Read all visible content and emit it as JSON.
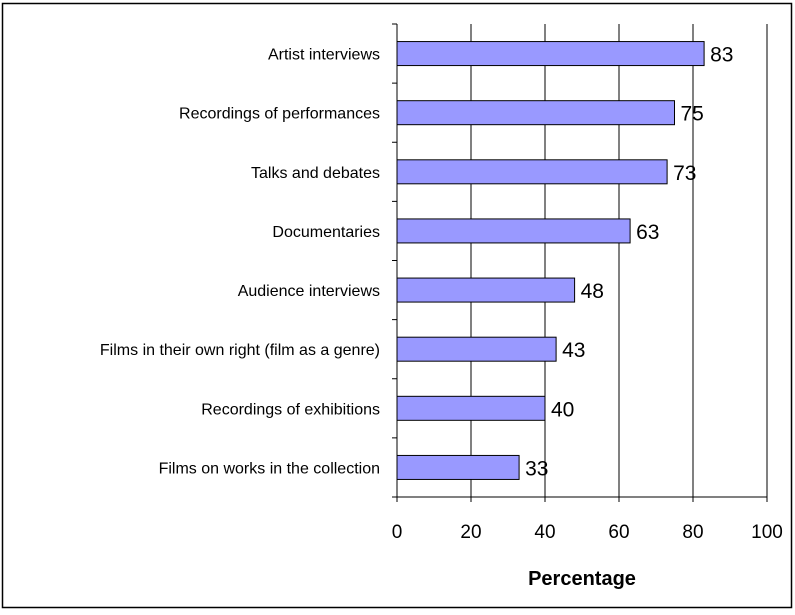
{
  "chart_data": {
    "type": "bar",
    "orientation": "horizontal",
    "categories": [
      "Artist interviews",
      "Recordings of performances",
      "Talks and debates",
      "Documentaries",
      "Audience interviews",
      "Films in their own right (film as a genre)",
      "Recordings of exhibitions",
      "Films on works in the collection"
    ],
    "values": [
      83,
      75,
      73,
      63,
      48,
      43,
      40,
      33
    ],
    "title": "",
    "xlabel": "Percentage",
    "ylabel": "",
    "xlim": [
      0,
      100
    ],
    "x_ticks": [
      "0",
      "20",
      "40",
      "60",
      "80",
      "100"
    ],
    "grid": "vertical",
    "legend": "none",
    "bar_color": "#9999ff",
    "bar_edge_color": "#000000",
    "grid_color": "#000000"
  }
}
